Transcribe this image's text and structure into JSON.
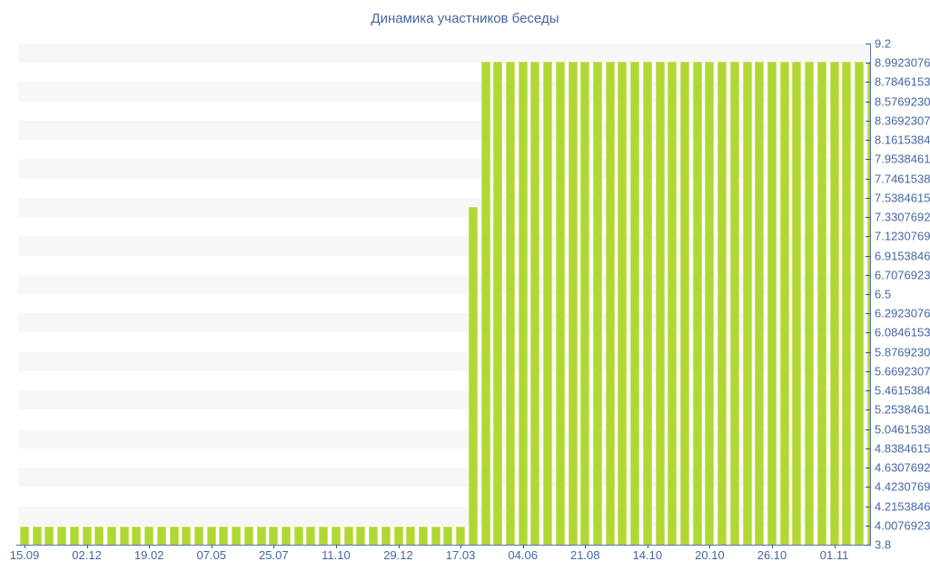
{
  "title": "Динамика участников беседы",
  "chart_data": {
    "type": "bar",
    "title": "Динамика участников беседы",
    "xlabel": "",
    "ylabel": "",
    "ylim": [
      3.8,
      9.2
    ],
    "grid": "alternating horizontal stripes",
    "y_axis_position": "right",
    "y_tick_labels": [
      "9.2",
      "8.992307692307692",
      "8.784615384615385",
      "8.576923076923077",
      "8.369230769230769",
      "8.161538461538462",
      "7.953846153846154",
      "7.746153846153846",
      "7.538461538461538",
      "7.330769230769231",
      "7.123076923076923",
      "6.915384615384615",
      "6.707692307692308",
      "6.5",
      "6.292307692307692",
      "6.084615384615385",
      "5.876923076923077",
      "5.669230769230769",
      "5.461538461538462",
      "5.253846153846154",
      "5.046153846153846",
      "4.838461538461538",
      "4.630769230769231",
      "4.423076923076923",
      "4.215384615384615",
      "4.007692307692308",
      "3.8"
    ],
    "x_tick_labels": [
      "15.09",
      "02.12",
      "19.02",
      "07.05",
      "25.07",
      "11.10",
      "29.12",
      "17.03",
      "04.06",
      "21.08",
      "14.10",
      "20.10",
      "26.10",
      "01.11"
    ],
    "x_label_every_n_bars": 5,
    "bar_values": [
      4,
      4,
      4,
      4,
      4,
      4,
      4,
      4,
      4,
      4,
      4,
      4,
      4,
      4,
      4,
      4,
      4,
      4,
      4,
      4,
      4,
      4,
      4,
      4,
      4,
      4,
      4,
      4,
      4,
      4,
      4,
      4,
      4,
      4,
      4,
      4,
      7.44,
      9,
      9,
      9,
      9,
      9,
      9,
      9,
      9,
      9,
      9,
      9,
      9,
      9,
      9,
      9,
      9,
      9,
      9,
      9,
      9,
      9,
      9,
      9,
      9,
      9,
      9,
      9,
      9,
      9,
      9,
      9,
      9
    ],
    "colors": {
      "bar_fill": "#b1d735",
      "bar_edge": "#c9e467",
      "axis_line": "#5a6fc0",
      "tick_mark": "#3a5494",
      "label_text": "#4466a4",
      "stripe": "#f7f7f7",
      "background": "#ffffff"
    }
  }
}
